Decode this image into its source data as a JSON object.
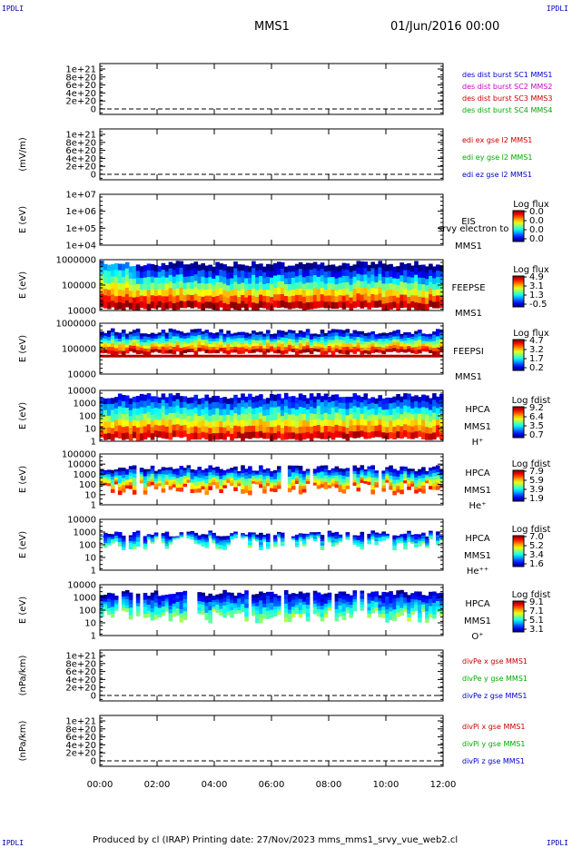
{
  "corners": {
    "tl": "IPDLI",
    "tr": "IPDLI",
    "bl": "IPDLI",
    "br": "IPDLI"
  },
  "header": {
    "title": "MMS1",
    "date": "01/Jun/2016 00:00"
  },
  "footer": {
    "text": "Produced by cl (IRAP)   Printing date: 27/Nov/2023   mms_mms1_srvy_vue_web2.cl"
  },
  "xaxis": {
    "ticks": [
      "00:00",
      "02:00",
      "04:00",
      "06:00",
      "08:00",
      "10:00",
      "12:00"
    ]
  },
  "panels": [
    {
      "type": "line",
      "ylabel": "",
      "ticks": [
        "1e+21",
        "8e+20",
        "6e+20",
        "4e+20",
        "2e+20",
        "0"
      ],
      "legend": [
        {
          "text": "des dist burst SC1 MMS1",
          "color": "#0000cc"
        },
        {
          "text": "des dist burst SC2 MMS2",
          "color": "#cc00cc"
        },
        {
          "text": "des dist burst SC3 MMS3",
          "color": "#cc0000"
        },
        {
          "text": "des dist burst SC4 MMS4",
          "color": "#00aa00"
        }
      ]
    },
    {
      "type": "line",
      "ylabel": "(mV/m)",
      "ticks": [
        "1e+21",
        "8e+20",
        "6e+20",
        "4e+20",
        "2e+20",
        "0"
      ],
      "legend": [
        {
          "text": "edi ex gse l2 MMS1",
          "color": "#cc0000"
        },
        {
          "text": "edi ey gse l2 MMS1",
          "color": "#00aa00"
        },
        {
          "text": "edi ez gse l2 MMS1",
          "color": "#0000cc"
        }
      ]
    },
    {
      "type": "spec",
      "ylabel": "E (eV)",
      "ticks": [
        "1e+07",
        "1e+06",
        "1e+05",
        "1e+04"
      ],
      "right": [
        "EIS",
        "MMS1"
      ],
      "overlay": "srvy electron to",
      "cbar": {
        "title": "Log flux",
        "values": [
          "0.0",
          "0.0",
          "0.0",
          "0.0"
        ]
      }
    },
    {
      "type": "spec",
      "ylabel": "E (eV)",
      "ticks": [
        "1000000",
        "100000",
        "10000"
      ],
      "right": [
        "FEEPSE",
        "MMS1"
      ],
      "cbar": {
        "title": "Log flux",
        "values": [
          "4.9",
          "3.1",
          "1.3",
          "-0.5"
        ]
      }
    },
    {
      "type": "spec",
      "ylabel": "E (eV)",
      "ticks": [
        "1000000",
        "100000",
        "10000"
      ],
      "right": [
        "FEEPSI",
        "MMS1"
      ],
      "cbar": {
        "title": "Log flux",
        "values": [
          "4.7",
          "3.2",
          "1.7",
          "0.2"
        ]
      }
    },
    {
      "type": "spec",
      "ylabel": "E (eV)",
      "ticks": [
        "10000",
        "1000",
        "100",
        "10",
        "1"
      ],
      "right": [
        "HPCA",
        "MMS1",
        "H⁺"
      ],
      "cbar": {
        "title": "Log fdist",
        "values": [
          "9.2",
          "6.4",
          "3.5",
          "0.7"
        ]
      }
    },
    {
      "type": "spec",
      "ylabel": "E (eV)",
      "ticks": [
        "100000",
        "10000",
        "1000",
        "100",
        "10",
        "1"
      ],
      "right": [
        "HPCA",
        "MMS1",
        "He⁺"
      ],
      "cbar": {
        "title": "Log fdist",
        "values": [
          "7.9",
          "5.9",
          "3.9",
          "1.9"
        ]
      }
    },
    {
      "type": "spec",
      "ylabel": "E (eV)",
      "ticks": [
        "10000",
        "1000",
        "100",
        "10",
        "1"
      ],
      "right": [
        "HPCA",
        "MMS1",
        "He⁺⁺"
      ],
      "cbar": {
        "title": "Log fdist",
        "values": [
          "7.0",
          "5.2",
          "3.4",
          "1.6"
        ]
      }
    },
    {
      "type": "spec",
      "ylabel": "E (eV)",
      "ticks": [
        "10000",
        "1000",
        "100",
        "10",
        "1"
      ],
      "right": [
        "HPCA",
        "MMS1",
        "O⁺"
      ],
      "cbar": {
        "title": "Log fdist",
        "values": [
          "9.1",
          "7.1",
          "5.1",
          "3.1"
        ]
      }
    },
    {
      "type": "line",
      "ylabel": "(nPa/km)",
      "ticks": [
        "1e+21",
        "8e+20",
        "6e+20",
        "4e+20",
        "2e+20",
        "0"
      ],
      "legend": [
        {
          "text": "divPe x gse MMS1",
          "color": "#cc0000"
        },
        {
          "text": "divPe y gse MMS1",
          "color": "#00aa00"
        },
        {
          "text": "divPe z gse MMS1",
          "color": "#0000cc"
        }
      ]
    },
    {
      "type": "line",
      "ylabel": "(nPa/km)",
      "ticks": [
        "1e+21",
        "8e+20",
        "6e+20",
        "4e+20",
        "2e+20",
        "0"
      ],
      "legend": [
        {
          "text": "divPi x gse MMS1",
          "color": "#cc0000"
        },
        {
          "text": "divPi y gse MMS1",
          "color": "#00aa00"
        },
        {
          "text": "divPi z gse MMS1",
          "color": "#0000cc"
        }
      ]
    }
  ],
  "chart_data": {
    "type": "heatmap",
    "x": [
      "00:00",
      "02:00",
      "04:00",
      "06:00",
      "08:00",
      "10:00",
      "12:00"
    ],
    "series": [
      {
        "name": "FEEPSE",
        "zlim": [
          -0.5,
          4.9
        ]
      },
      {
        "name": "FEEPSI",
        "zlim": [
          0.2,
          4.7
        ]
      },
      {
        "name": "HPCA H+",
        "zlim": [
          0.7,
          9.2
        ]
      },
      {
        "name": "HPCA He+",
        "zlim": [
          1.9,
          7.9
        ]
      },
      {
        "name": "HPCA He++",
        "zlim": [
          1.6,
          7.0
        ]
      },
      {
        "name": "HPCA O+",
        "zlim": [
          3.1,
          9.1
        ]
      }
    ]
  }
}
